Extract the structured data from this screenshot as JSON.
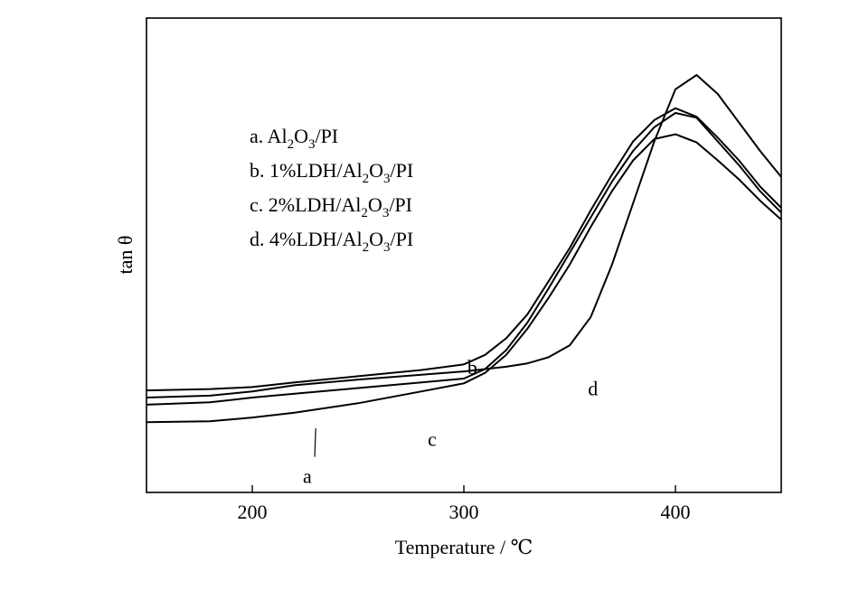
{
  "chart_data": {
    "type": "line",
    "title": "",
    "xlabel": "Temperature / ℃",
    "ylabel": "tan θ",
    "xlim": [
      150,
      450
    ],
    "ylim": [
      0,
      1
    ],
    "xticks": [
      200,
      300,
      400
    ],
    "yticks": [],
    "grid": false,
    "legend_position": "top-left",
    "legend": [
      "a. Al2O3/PI",
      "b. 1%LDH/Al2O3/PI",
      "c. 2%LDH/Al2O3/PI",
      "d. 4%LDH/Al2O3/PI"
    ],
    "series": [
      {
        "name": "a",
        "x": [
          150,
          180,
          200,
          220,
          250,
          280,
          300,
          310,
          320,
          330,
          340,
          350,
          360,
          370,
          380,
          390,
          400,
          410,
          420,
          430,
          440,
          450
        ],
        "y": [
          0.148,
          0.15,
          0.158,
          0.168,
          0.188,
          0.213,
          0.23,
          0.252,
          0.29,
          0.345,
          0.41,
          0.48,
          0.56,
          0.635,
          0.7,
          0.745,
          0.755,
          0.738,
          0.7,
          0.66,
          0.615,
          0.575
        ]
      },
      {
        "name": "b",
        "x": [
          150,
          180,
          200,
          220,
          250,
          280,
          300,
          310,
          320,
          330,
          340,
          350,
          360,
          370,
          380,
          390,
          400,
          410,
          420,
          430,
          440,
          450
        ],
        "y": [
          0.215,
          0.218,
          0.222,
          0.232,
          0.245,
          0.258,
          0.27,
          0.29,
          0.325,
          0.375,
          0.445,
          0.515,
          0.595,
          0.67,
          0.74,
          0.785,
          0.81,
          0.792,
          0.748,
          0.7,
          0.645,
          0.6
        ]
      },
      {
        "name": "c",
        "x": [
          150,
          180,
          200,
          220,
          250,
          280,
          300,
          310,
          320,
          330,
          340,
          350,
          360,
          370,
          380,
          390,
          400,
          410,
          420,
          430,
          440,
          450
        ],
        "y": [
          0.185,
          0.19,
          0.2,
          0.208,
          0.22,
          0.232,
          0.24,
          0.26,
          0.3,
          0.358,
          0.43,
          0.505,
          0.58,
          0.655,
          0.72,
          0.77,
          0.8,
          0.79,
          0.74,
          0.69,
          0.635,
          0.59
        ]
      },
      {
        "name": "d",
        "x": [
          150,
          180,
          200,
          220,
          250,
          280,
          300,
          310,
          320,
          330,
          340,
          350,
          360,
          370,
          380,
          390,
          400,
          410,
          420,
          430,
          440,
          450
        ],
        "y": [
          0.2,
          0.204,
          0.213,
          0.226,
          0.238,
          0.248,
          0.255,
          0.26,
          0.265,
          0.272,
          0.285,
          0.31,
          0.37,
          0.48,
          0.61,
          0.74,
          0.85,
          0.88,
          0.84,
          0.78,
          0.72,
          0.665
        ]
      }
    ],
    "annotations": [
      "a",
      "b",
      "c",
      "d"
    ]
  }
}
